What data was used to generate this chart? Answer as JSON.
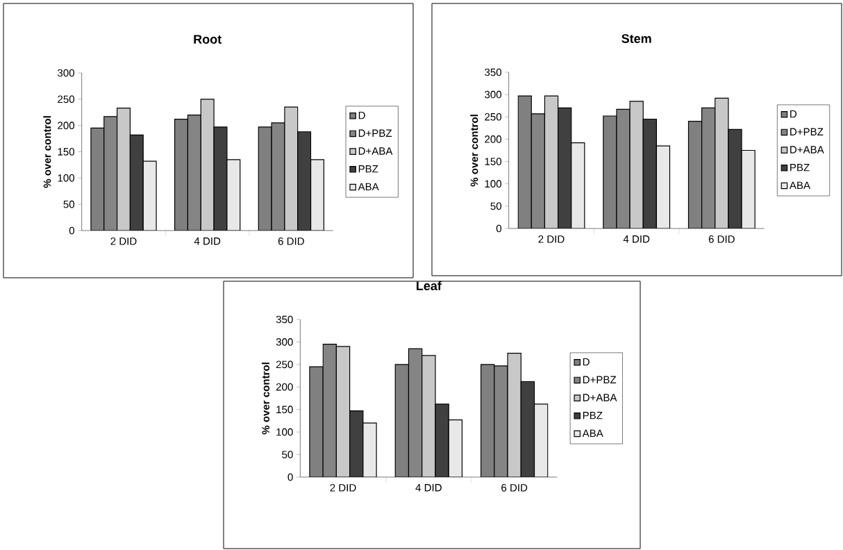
{
  "chart_data": [
    {
      "type": "bar",
      "title": "Root",
      "ylabel": "% over control",
      "categories": [
        "2 DID",
        "4 DID",
        "6 DID"
      ],
      "ylim": [
        0,
        300
      ],
      "yticks": [
        0,
        50,
        100,
        150,
        200,
        250,
        300
      ],
      "legend": "right",
      "series": [
        {
          "name": "D",
          "color": "#808080",
          "values": [
            195,
            212,
            197
          ]
        },
        {
          "name": "D+PBZ",
          "color": "#858585",
          "values": [
            217,
            220,
            205
          ]
        },
        {
          "name": "D+ABA",
          "color": "#c8c8c8",
          "values": [
            233,
            250,
            235
          ]
        },
        {
          "name": "PBZ",
          "color": "#404040",
          "values": [
            182,
            197,
            188
          ]
        },
        {
          "name": "ABA",
          "color": "#e8e8e8",
          "values": [
            132,
            135,
            135
          ]
        }
      ]
    },
    {
      "type": "bar",
      "title": "Stem",
      "ylabel": "% over control",
      "categories": [
        "2 DID",
        "4 DID",
        "6 DID"
      ],
      "ylim": [
        0,
        350
      ],
      "yticks": [
        0,
        50,
        100,
        150,
        200,
        250,
        300,
        350
      ],
      "legend": "right",
      "series": [
        {
          "name": "D",
          "color": "#808080",
          "values": [
            297,
            252,
            240
          ]
        },
        {
          "name": "D+PBZ",
          "color": "#858585",
          "values": [
            257,
            267,
            270
          ]
        },
        {
          "name": "D+ABA",
          "color": "#c8c8c8",
          "values": [
            297,
            285,
            292
          ]
        },
        {
          "name": "PBZ",
          "color": "#404040",
          "values": [
            270,
            245,
            222
          ]
        },
        {
          "name": "ABA",
          "color": "#e8e8e8",
          "values": [
            192,
            185,
            175
          ]
        }
      ]
    },
    {
      "type": "bar",
      "title": "Leaf",
      "ylabel": "% over control",
      "categories": [
        "2 DID",
        "4 DID",
        "6 DID"
      ],
      "ylim": [
        0,
        350
      ],
      "yticks": [
        0,
        50,
        100,
        150,
        200,
        250,
        300,
        350
      ],
      "legend": "right",
      "series": [
        {
          "name": "D",
          "color": "#808080",
          "values": [
            245,
            250,
            250
          ]
        },
        {
          "name": "D+PBZ",
          "color": "#858585",
          "values": [
            295,
            285,
            247
          ]
        },
        {
          "name": "D+ABA",
          "color": "#c8c8c8",
          "values": [
            290,
            270,
            275
          ]
        },
        {
          "name": "PBZ",
          "color": "#404040",
          "values": [
            147,
            162,
            212
          ]
        },
        {
          "name": "ABA",
          "color": "#e8e8e8",
          "values": [
            120,
            127,
            162
          ]
        }
      ]
    }
  ]
}
